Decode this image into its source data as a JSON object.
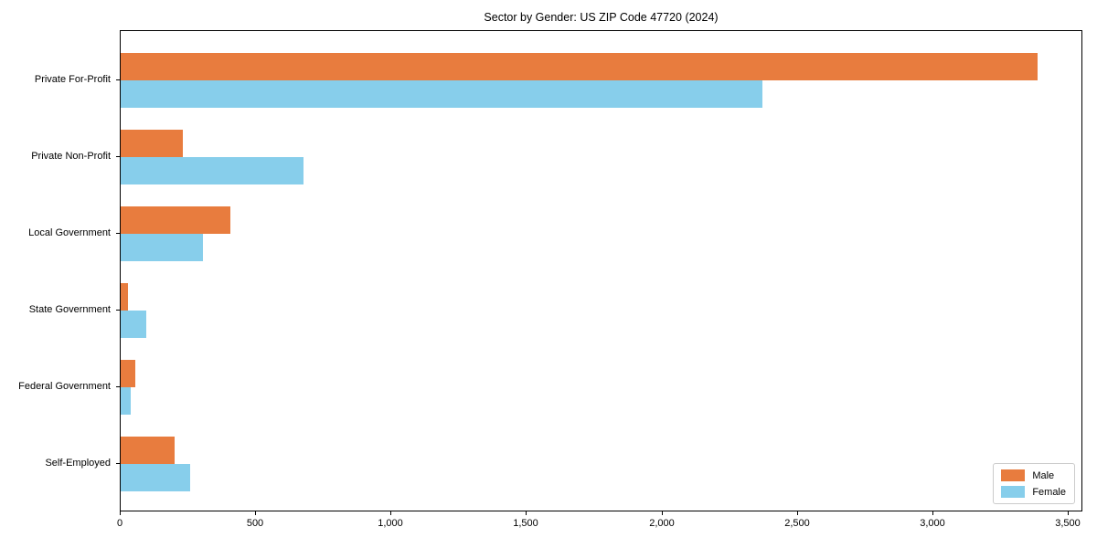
{
  "chart_data": {
    "type": "bar",
    "orientation": "horizontal",
    "title": "Sector by Gender: US ZIP Code 47720 (2024)",
    "categories": [
      "Private For-Profit",
      "Private Non-Profit",
      "Local Government",
      "State Government",
      "Federal Government",
      "Self-Employed"
    ],
    "series": [
      {
        "name": "Male",
        "color": "#E87C3E",
        "values": [
          3385,
          230,
          405,
          27,
          53,
          200
        ]
      },
      {
        "name": "Female",
        "color": "#87CEEB",
        "values": [
          2370,
          675,
          305,
          95,
          38,
          255
        ]
      }
    ],
    "xlabel": "",
    "ylabel": "",
    "xlim": [
      0,
      3554
    ],
    "x_ticks": [
      0,
      500,
      1000,
      1500,
      2000,
      2500,
      3000,
      3500
    ],
    "x_tick_labels": [
      "0",
      "500",
      "1,000",
      "1,500",
      "2,000",
      "2,500",
      "3,000",
      "3,500"
    ],
    "grid": false,
    "legend": {
      "position": "lower right",
      "items": [
        "Male",
        "Female"
      ]
    }
  }
}
